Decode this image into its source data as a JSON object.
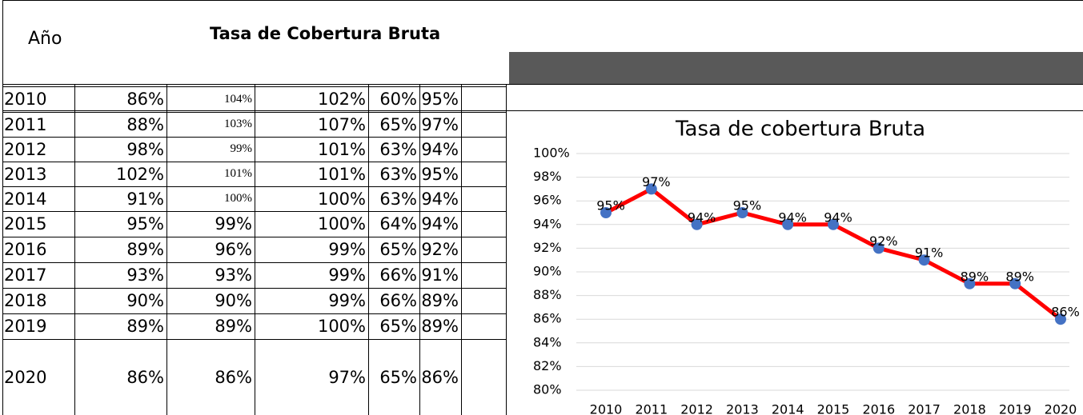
{
  "header": {
    "year_label": "Año",
    "title": "Tasa de Cobertura Bruta"
  },
  "table": {
    "rows": [
      [
        "2010",
        "86%",
        "104%",
        "102%",
        "60%",
        "95%"
      ],
      [
        "2011",
        "88%",
        "103%",
        "107%",
        "65%",
        "97%"
      ],
      [
        "2012",
        "98%",
        "99%",
        "101%",
        "63%",
        "94%"
      ],
      [
        "2013",
        "102%",
        "101%",
        "101%",
        "63%",
        "95%"
      ],
      [
        "2014",
        "91%",
        "100%",
        "100%",
        "63%",
        "94%"
      ],
      [
        "2015",
        "95%",
        "99%",
        "100%",
        "64%",
        "94%"
      ],
      [
        "2016",
        "89%",
        "96%",
        "99%",
        "65%",
        "92%"
      ],
      [
        "2017",
        "93%",
        "93%",
        "99%",
        "66%",
        "91%"
      ],
      [
        "2018",
        "90%",
        "90%",
        "99%",
        "66%",
        "89%"
      ],
      [
        "2019",
        "89%",
        "89%",
        "100%",
        "65%",
        "89%"
      ],
      [
        "2020",
        "86%",
        "86%",
        "97%",
        "65%",
        "86%"
      ]
    ]
  },
  "chart_data": {
    "type": "line",
    "title": "Tasa de cobertura Bruta",
    "categories": [
      "2010",
      "2011",
      "2012",
      "2013",
      "2014",
      "2015",
      "2016",
      "2017",
      "2018",
      "2019",
      "2020"
    ],
    "values": [
      95,
      97,
      94,
      95,
      94,
      94,
      92,
      91,
      89,
      89,
      86
    ],
    "value_labels": [
      "95%",
      "97%",
      "94%",
      "95%",
      "94%",
      "94%",
      "92%",
      "91%",
      "89%",
      "89%",
      "86%"
    ],
    "color": "#ff0000",
    "marker_color": "#4472c4",
    "ylim": [
      80,
      100
    ],
    "yticks": [
      {
        "value": 80,
        "label": "80%"
      },
      {
        "value": 82,
        "label": "82%"
      },
      {
        "value": 84,
        "label": "84%"
      },
      {
        "value": 86,
        "label": "86%"
      },
      {
        "value": 88,
        "label": "88%"
      },
      {
        "value": 90,
        "label": "90%"
      },
      {
        "value": 92,
        "label": "92%"
      },
      {
        "value": 94,
        "label": "94%"
      },
      {
        "value": 96,
        "label": "96%"
      },
      {
        "value": 98,
        "label": "98%"
      },
      {
        "value": 100,
        "label": "100%"
      }
    ],
    "grid": true
  }
}
